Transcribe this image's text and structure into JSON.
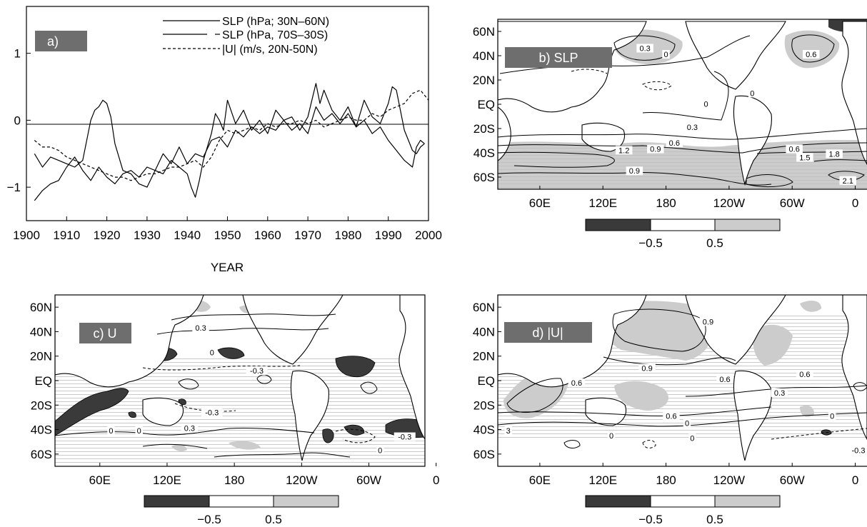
{
  "chart_data": [
    {
      "type": "line",
      "panel_label": "a)",
      "xlabel": "YEAR",
      "xlim": [
        1900,
        2000
      ],
      "ylim": [
        -1.5,
        1.7
      ],
      "x_ticks": [
        "1900",
        "1910",
        "1920",
        "1930",
        "1940",
        "1950",
        "1960",
        "1970",
        "1980",
        "1990",
        "2000"
      ],
      "y_ticks": [
        {
          "v": 1,
          "label": "1"
        },
        {
          "v": 0,
          "label": "0"
        },
        {
          "v": -1,
          "label": "−1"
        }
      ],
      "legend": [
        "SLP (hPa; 30N–60N)",
        "SLP (hPa, 70S–30S)",
        "|U| (m/s, 20N-50N)"
      ],
      "series": [
        {
          "name": "SLP (hPa; 30N–60N)",
          "style": "solid",
          "x": [
            1902,
            1904,
            1906,
            1908,
            1910,
            1912,
            1914,
            1916,
            1917,
            1918,
            1919,
            1920,
            1921,
            1922,
            1923,
            1924,
            1926,
            1928,
            1930,
            1932,
            1934,
            1936,
            1938,
            1940,
            1941,
            1942,
            1943,
            1944,
            1946,
            1947,
            1948,
            1949,
            1950,
            1952,
            1954,
            1956,
            1958,
            1960,
            1962,
            1964,
            1966,
            1968,
            1970,
            1971,
            1972,
            1973,
            1974,
            1976,
            1978,
            1980,
            1982,
            1984,
            1986,
            1988,
            1990,
            1991,
            1992,
            1993,
            1994,
            1995,
            1996,
            1997,
            1998,
            1999
          ],
          "y": [
            -0.5,
            -0.7,
            -0.55,
            -0.6,
            -0.65,
            -0.7,
            -0.6,
            0.0,
            0.15,
            0.2,
            0.3,
            0.25,
            0.05,
            -0.35,
            -0.55,
            -0.75,
            -0.8,
            -0.95,
            -1.0,
            -0.75,
            -0.8,
            -0.6,
            -0.7,
            -0.8,
            -1.0,
            -1.15,
            -0.9,
            -0.6,
            -0.2,
            0.1,
            0.0,
            -0.15,
            0.3,
            -0.05,
            0.15,
            -0.15,
            0.0,
            -0.2,
            0.15,
            0.0,
            0.05,
            -0.15,
            0.05,
            0.3,
            0.55,
            0.25,
            0.45,
            0.15,
            0.0,
            0.2,
            -0.1,
            0.3,
            0.05,
            -0.05,
            0.25,
            0.5,
            0.45,
            0.15,
            -0.15,
            -0.3,
            -0.45,
            -0.5,
            -0.4,
            -0.35
          ]
        },
        {
          "name": "SLP (hPa, 70S–30S)",
          "style": "solid",
          "x": [
            1902,
            1904,
            1906,
            1908,
            1910,
            1912,
            1914,
            1916,
            1918,
            1920,
            1922,
            1924,
            1926,
            1928,
            1930,
            1932,
            1934,
            1936,
            1938,
            1940,
            1942,
            1944,
            1946,
            1948,
            1950,
            1952,
            1954,
            1956,
            1958,
            1960,
            1962,
            1964,
            1966,
            1968,
            1970,
            1972,
            1974,
            1976,
            1978,
            1980,
            1982,
            1984,
            1986,
            1988,
            1990,
            1992,
            1994,
            1996,
            1997,
            1998,
            1999
          ],
          "y": [
            -1.2,
            -1.05,
            -0.95,
            -0.9,
            -0.7,
            -0.55,
            -0.75,
            -0.9,
            -0.7,
            -0.85,
            -0.95,
            -0.8,
            -0.75,
            -0.85,
            -0.7,
            -0.75,
            -0.5,
            -0.65,
            -0.4,
            -0.65,
            -0.5,
            -0.55,
            -0.3,
            -0.25,
            -0.4,
            -0.15,
            -0.25,
            -0.1,
            -0.2,
            -0.1,
            -0.15,
            0.0,
            -0.15,
            -0.05,
            -0.2,
            0.2,
            0.0,
            0.1,
            -0.05,
            0.1,
            -0.1,
            0.0,
            -0.2,
            -0.1,
            -0.3,
            -0.45,
            -0.6,
            -0.7,
            -0.4,
            -0.3,
            -0.35
          ]
        },
        {
          "name": "|U| (m/s, 20N-50N)",
          "style": "dashed",
          "x": [
            1902,
            1904,
            1906,
            1908,
            1910,
            1912,
            1914,
            1916,
            1918,
            1920,
            1922,
            1924,
            1926,
            1928,
            1930,
            1932,
            1934,
            1936,
            1938,
            1940,
            1942,
            1944,
            1946,
            1948,
            1950,
            1952,
            1954,
            1956,
            1958,
            1960,
            1962,
            1964,
            1966,
            1968,
            1970,
            1972,
            1974,
            1976,
            1978,
            1980,
            1982,
            1984,
            1986,
            1988,
            1990,
            1992,
            1994,
            1996,
            1998,
            2000
          ],
          "y": [
            -0.3,
            -0.4,
            -0.4,
            -0.45,
            -0.55,
            -0.6,
            -0.65,
            -0.7,
            -0.75,
            -0.8,
            -0.85,
            -0.85,
            -0.9,
            -0.85,
            -0.8,
            -0.8,
            -0.75,
            -0.7,
            -0.7,
            -0.65,
            -0.6,
            -0.7,
            -0.55,
            -0.3,
            -0.15,
            -0.2,
            -0.15,
            -0.1,
            -0.15,
            -0.05,
            -0.1,
            -0.05,
            -0.05,
            0.0,
            -0.05,
            0.0,
            -0.1,
            -0.05,
            0.0,
            0.05,
            0.0,
            0.0,
            0.1,
            0.05,
            0.15,
            0.2,
            0.25,
            0.4,
            0.45,
            0.3
          ]
        }
      ]
    },
    {
      "type": "map",
      "panel_label": "b) SLP",
      "lat_ticks": [
        "60N",
        "40N",
        "20N",
        "EQ",
        "20S",
        "40S",
        "60S"
      ],
      "lon_ticks": [
        "60E",
        "120E",
        "180",
        "120W",
        "60W",
        "0"
      ],
      "shading_legend": {
        "labels": [
          "−0.5",
          "0.5"
        ],
        "colors": [
          "#3a3a3a",
          "#ffffff",
          "#cccccc"
        ]
      },
      "contour_labels": [
        {
          "text": "0.3",
          "lon": 160,
          "lat": 45
        },
        {
          "text": "0",
          "lon": 180,
          "lat": 40
        },
        {
          "text": "0.6",
          "lon": 318,
          "lat": 40
        },
        {
          "text": "0",
          "lon": 262,
          "lat": 8
        },
        {
          "text": "0",
          "lon": 218,
          "lat": -1
        },
        {
          "text": "0.3",
          "lon": 205,
          "lat": -20
        },
        {
          "text": "0.6",
          "lon": 188,
          "lat": -33
        },
        {
          "text": "0.9",
          "lon": 170,
          "lat": -38
        },
        {
          "text": "1.2",
          "lon": 140,
          "lat": -39
        },
        {
          "text": "0.9",
          "lon": 150,
          "lat": -56
        },
        {
          "text": "0.6",
          "lon": 302,
          "lat": -38
        },
        {
          "text": "1.5",
          "lon": 312,
          "lat": -45
        },
        {
          "text": "1.8",
          "lon": 340,
          "lat": -42
        },
        {
          "text": "2.1",
          "lon": 353,
          "lat": -64
        }
      ]
    },
    {
      "type": "map",
      "panel_label": "c) U",
      "lat_ticks": [
        "60N",
        "40N",
        "20N",
        "EQ",
        "20S",
        "40S",
        "60S"
      ],
      "lon_ticks": [
        "60E",
        "120E",
        "180",
        "120W",
        "60W",
        "0"
      ],
      "shading_legend": {
        "labels": [
          "−0.5",
          "0.5"
        ],
        "colors": [
          "#3a3a3a",
          "#ffffff",
          "#cccccc"
        ]
      },
      "contour_labels": [
        {
          "text": "0.3",
          "lon": 150,
          "lat": 42
        },
        {
          "text": "0",
          "lon": 160,
          "lat": 22
        },
        {
          "text": "-0.3",
          "lon": 200,
          "lat": 7
        },
        {
          "text": "-0.3",
          "lon": 160,
          "lat": -27
        },
        {
          "text": "0",
          "lon": 70,
          "lat": -42
        },
        {
          "text": "0",
          "lon": 95,
          "lat": -42
        },
        {
          "text": "0.3",
          "lon": 140,
          "lat": -40
        },
        {
          "text": "0",
          "lon": 310,
          "lat": -58
        },
        {
          "text": "-0.3",
          "lon": 332,
          "lat": -47
        }
      ]
    },
    {
      "type": "map",
      "panel_label": "d) |U|",
      "lat_ticks": [
        "60N",
        "40N",
        "20N",
        "EQ",
        "20S",
        "40S",
        "60S"
      ],
      "lon_ticks": [
        "60E",
        "120E",
        "180",
        "120W",
        "60W",
        "0"
      ],
      "shading_legend": {
        "labels": [
          "−0.5",
          "0.5"
        ],
        "colors": [
          "#3a3a3a",
          "#ffffff",
          "#cccccc"
        ]
      },
      "contour_labels": [
        {
          "text": "0.9",
          "lon": 220,
          "lat": 47
        },
        {
          "text": "0.9",
          "lon": 162,
          "lat": 9
        },
        {
          "text": "0.6",
          "lon": 95,
          "lat": -3
        },
        {
          "text": "0.6",
          "lon": 236,
          "lat": 0
        },
        {
          "text": "0.6",
          "lon": 312,
          "lat": 4
        },
        {
          "text": "0.3",
          "lon": 288,
          "lat": -11
        },
        {
          "text": "0.6",
          "lon": 185,
          "lat": -30
        },
        {
          "text": "0",
          "lon": 200,
          "lat": -36
        },
        {
          "text": "0",
          "lon": 338,
          "lat": -30
        },
        {
          "text": "0",
          "lon": 205,
          "lat": -48
        },
        {
          "text": "-0.3",
          "lon": 363,
          "lat": -58
        },
        {
          "text": "3",
          "lon": 30,
          "lat": -42
        },
        {
          "text": "0",
          "lon": 128,
          "lat": -46
        }
      ]
    }
  ]
}
